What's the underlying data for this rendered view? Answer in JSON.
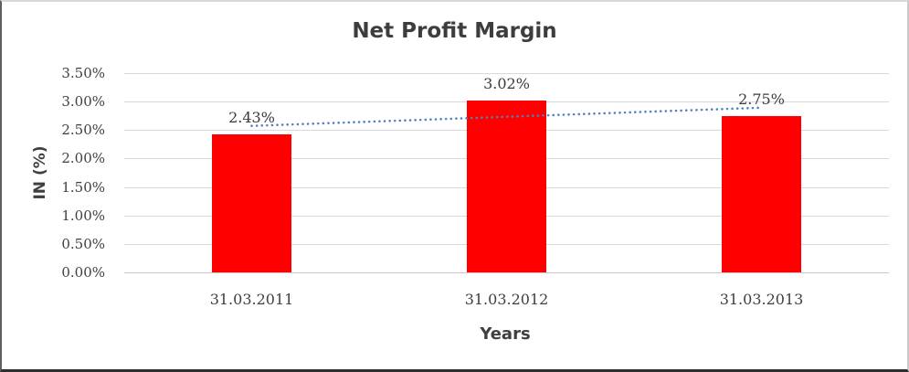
{
  "chart_data": {
    "type": "bar",
    "title": "Net Profit Margin",
    "xlabel": "Years",
    "ylabel": "IN (%)",
    "categories": [
      "31.03.2011",
      "31.03.2012",
      "31.03.2013"
    ],
    "values": [
      2.43,
      3.02,
      2.75
    ],
    "data_labels": [
      "2.43%",
      "3.02%",
      "2.75%"
    ],
    "ylim": [
      0,
      3.5
    ],
    "ytick_step": 0.5,
    "ytick_labels": [
      "0.00%",
      "0.50%",
      "1.00%",
      "1.50%",
      "2.00%",
      "2.50%",
      "3.00%",
      "3.50%"
    ],
    "grid": true,
    "legend_position": "none",
    "bar_color": "#FF0000",
    "gridline_color": "#d9d9d9",
    "text_color": "#3f3f3f",
    "trendline": {
      "type": "linear",
      "style": "dotted",
      "color": "#4F81BD"
    }
  }
}
